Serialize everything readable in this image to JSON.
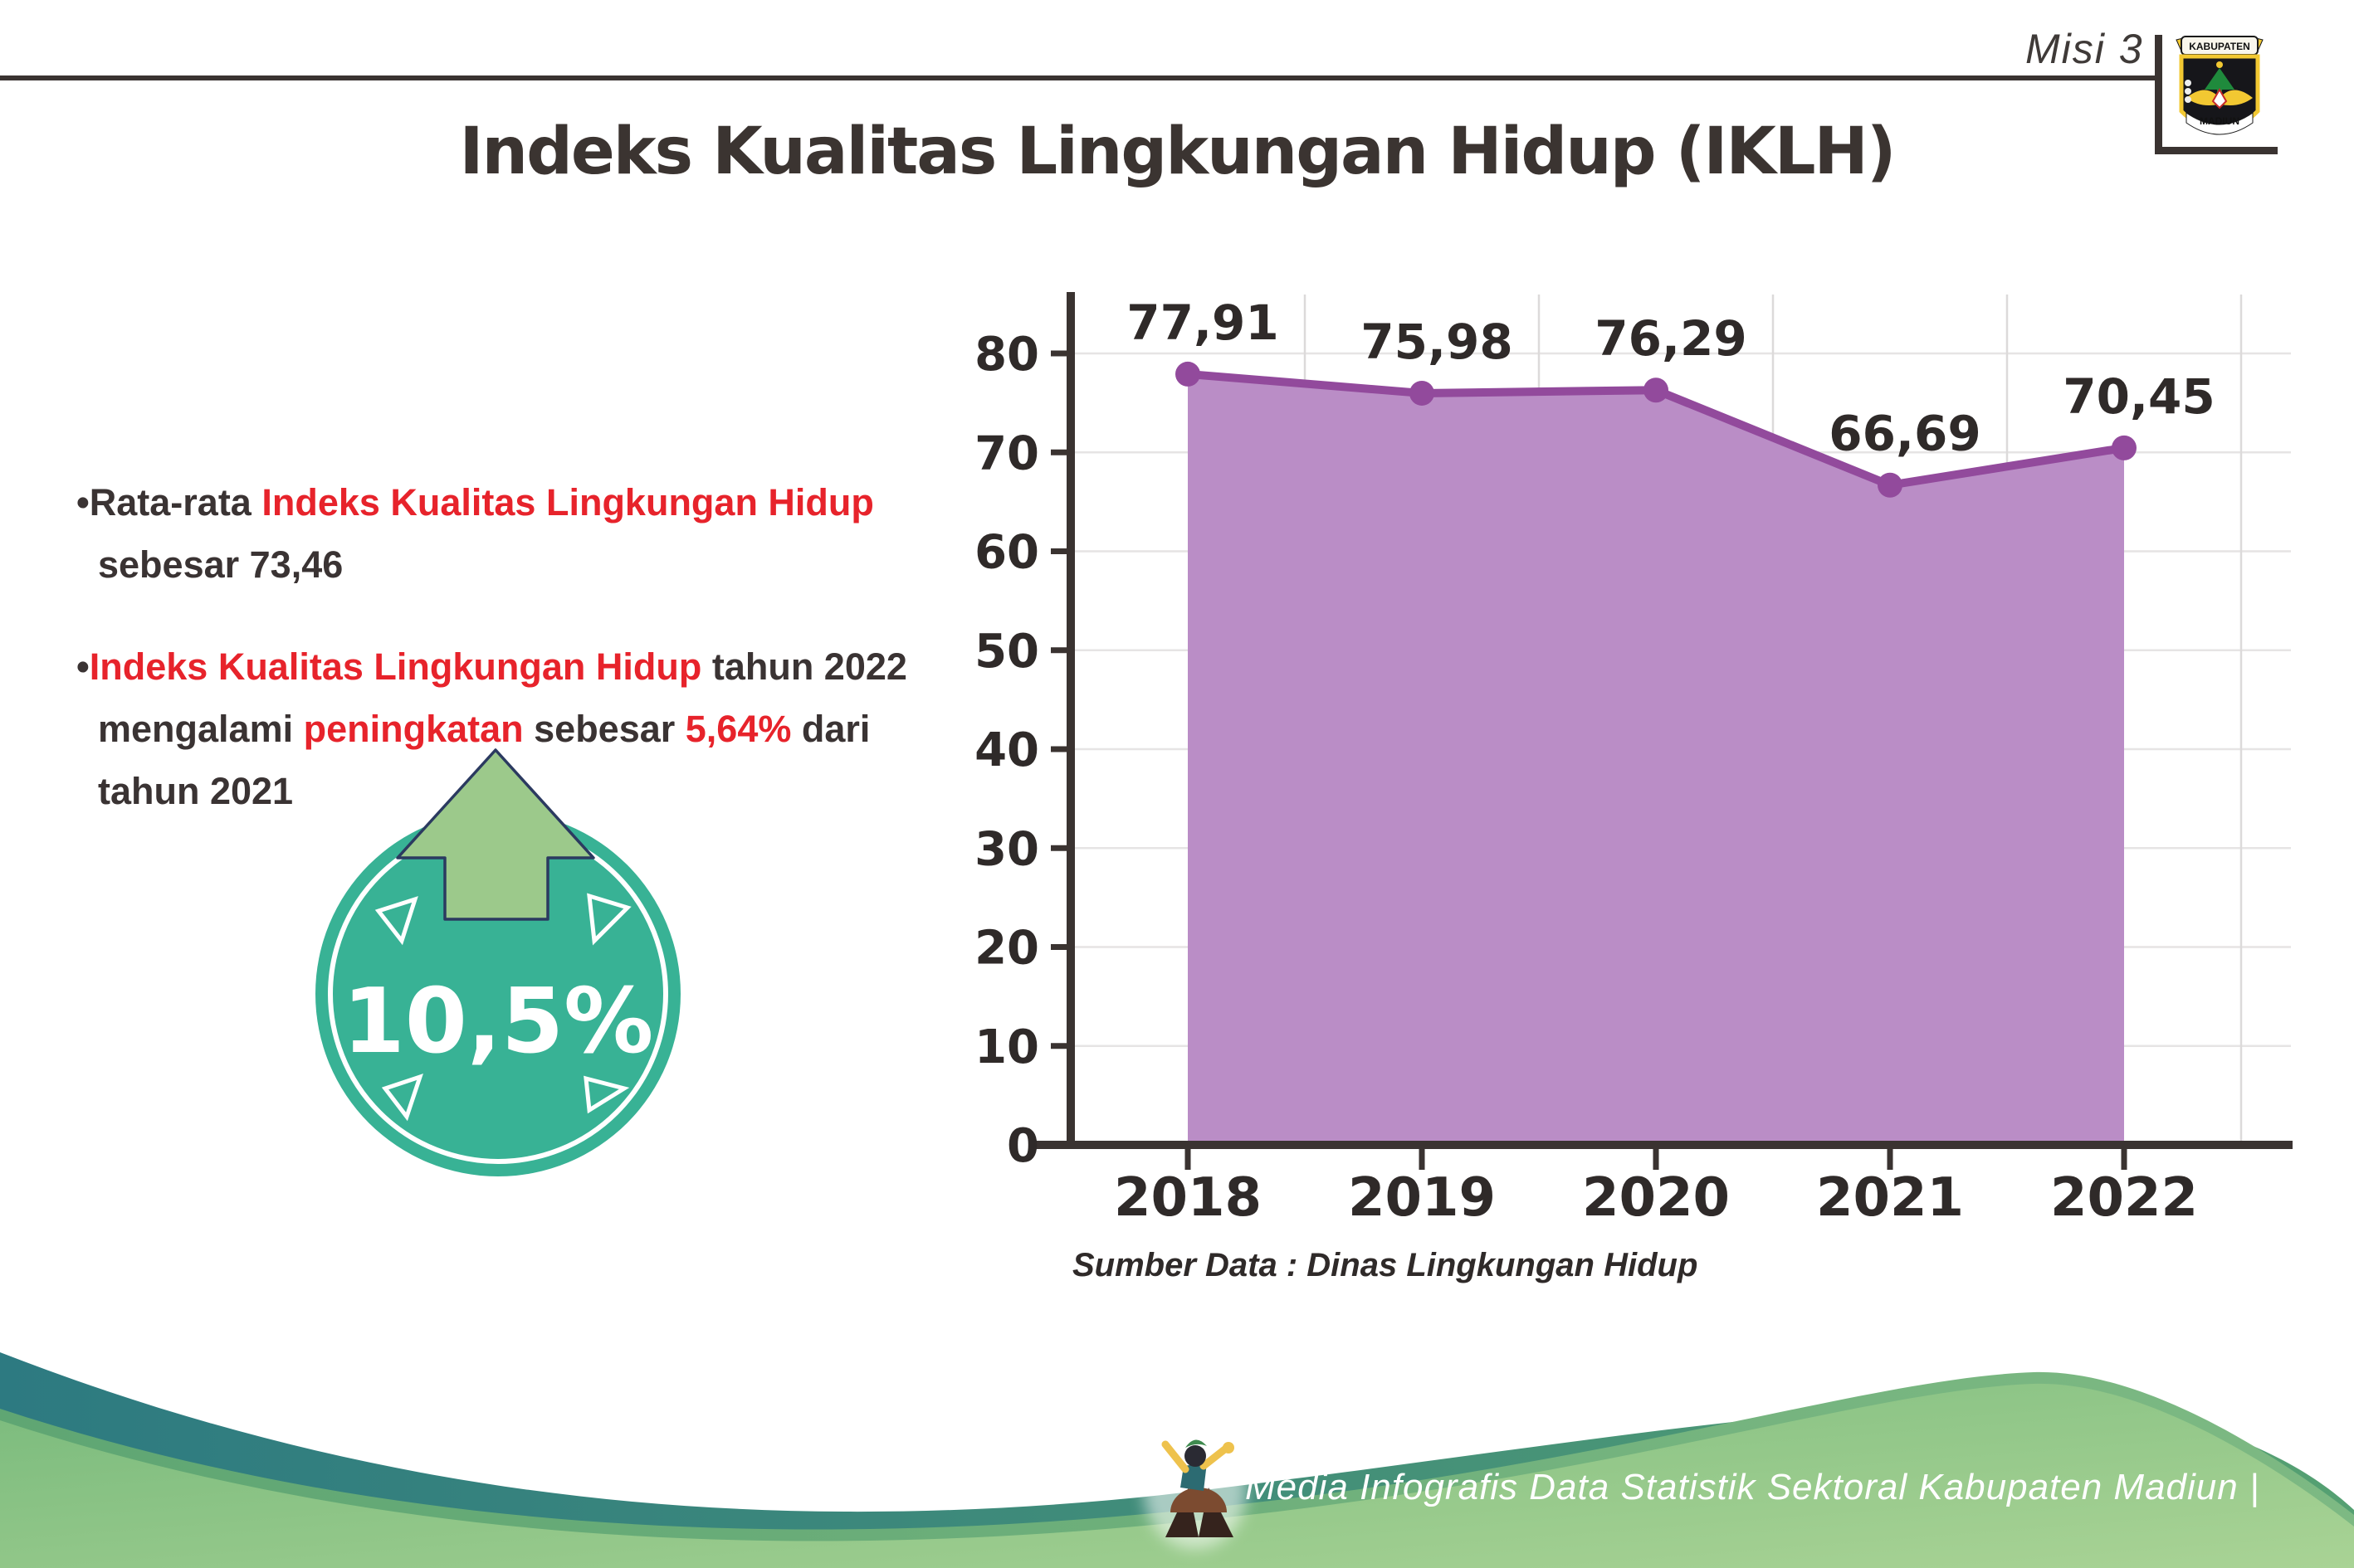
{
  "palette": {
    "dark_text": "#3a3333",
    "accent_red": "#e7232b",
    "badge_teal": "#38b295",
    "arrow_green": "#9cc98b",
    "arrow_outline_navy": "#2b3a60",
    "footer_teal": "#2f7a81",
    "footer_green": "#8dc689",
    "footer_rim_green": "#6cae7a"
  },
  "header": {
    "misi_label": "Misi 3",
    "logo_top": "KABUPATEN",
    "logo_bottom": "MADIUN"
  },
  "title": "Indeks Kualitas Lingkungan Hidup (IKLH)",
  "bullets": [
    {
      "segments": [
        {
          "t": "•Rata-rata ",
          "c": "dark"
        },
        {
          "t": "Indeks Kualitas Lingkungan Hidup",
          "c": "red"
        },
        {
          "t": " sebesar 73,46",
          "c": "dark"
        }
      ]
    },
    {
      "segments": [
        {
          "t": "•",
          "c": "dark"
        },
        {
          "t": "Indeks Kualitas Lingkungan Hidup",
          "c": "red"
        },
        {
          "t": " tahun 2022 mengalami ",
          "c": "dark"
        },
        {
          "t": "peningkatan",
          "c": "red"
        },
        {
          "t": " sebesar ",
          "c": "dark"
        },
        {
          "t": "5,64%",
          "c": "red"
        },
        {
          "t": " dari tahun 2021",
          "c": "dark"
        }
      ]
    }
  ],
  "badge": {
    "value": "10,5%"
  },
  "chart_data": {
    "type": "area",
    "categories": [
      "2018",
      "2019",
      "2020",
      "2021",
      "2022"
    ],
    "values": [
      77.91,
      75.98,
      76.29,
      66.69,
      70.45
    ],
    "value_labels": [
      "77,91",
      "75,98",
      "76,29",
      "66,69",
      "70,45"
    ],
    "ylim": [
      0,
      80
    ],
    "yticks": [
      0,
      10,
      20,
      30,
      40,
      50,
      60,
      70,
      80
    ],
    "grid": true,
    "legend": "none",
    "source": "Sumber Data : Dinas Lingkungan Hidup",
    "line_color": "#924a9c",
    "fill_color": "#ba8dc6",
    "axis_color": "#3a3331",
    "label_color": "#2f2a29",
    "hgrid_color": "#e6e4e4",
    "vgrid_color": "#dcdada"
  },
  "footer": {
    "credit": "Media Infografis Data Statistik Sektoral Kabupaten Madiun |"
  }
}
